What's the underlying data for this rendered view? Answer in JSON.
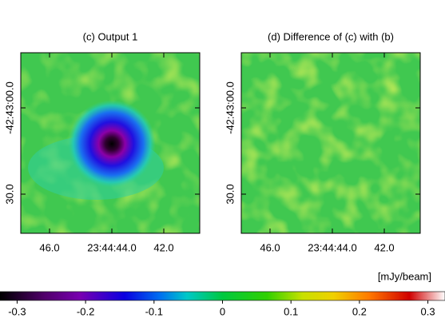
{
  "panels": [
    {
      "title": "(c)  Output 1",
      "xticks": [
        "46.0",
        "23:44:44.0",
        "42.0"
      ],
      "yticks": [
        "-42:43:00.0",
        "30.0"
      ]
    },
    {
      "title": "(d)  Difference of (c) with (b)",
      "xticks": [
        "46.0",
        "23:44:44.0",
        "42.0"
      ],
      "yticks": [
        "-42:43:00.0",
        "30.0"
      ]
    }
  ],
  "colorbar": {
    "label": "[mJy/beam]",
    "lim": [
      -0.325,
      0.325
    ],
    "ticks": [
      -0.3,
      -0.2,
      -0.1,
      0,
      0.1,
      0.2,
      0.3
    ]
  }
}
